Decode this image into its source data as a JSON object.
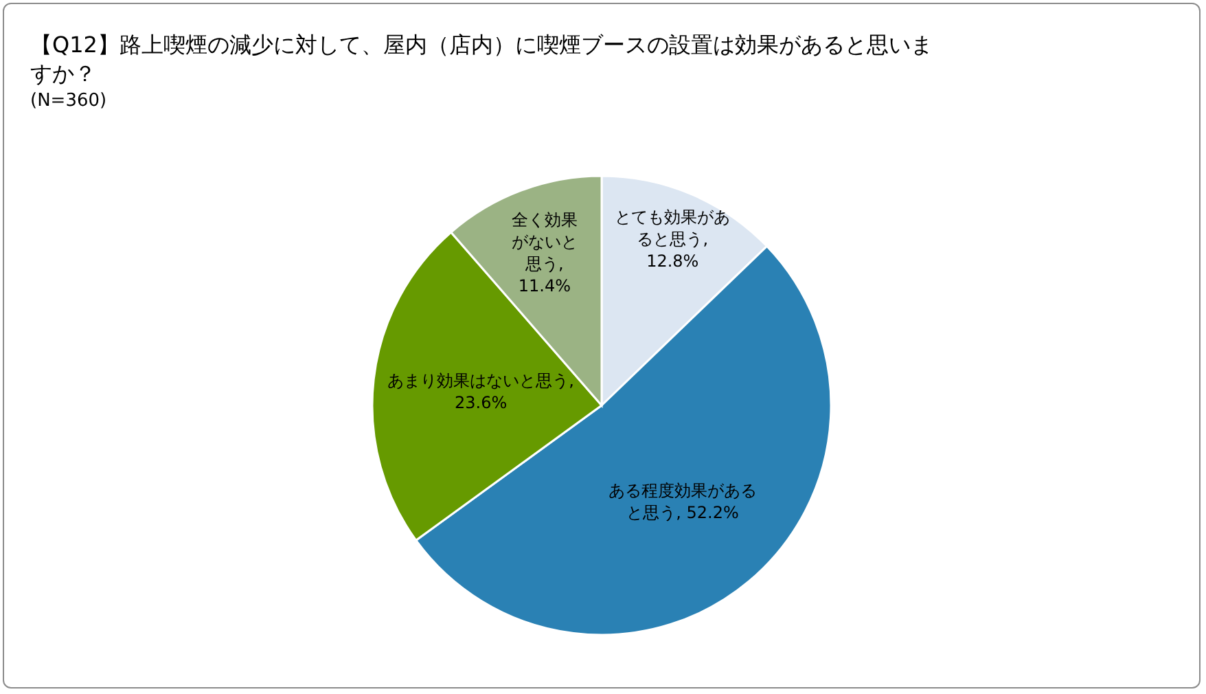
{
  "chart_data": {
    "type": "pie",
    "title": "【Q12】路上喫煙の減少に対して、屋内（店内）に喫煙ブースの設置は効果があると思いますか？",
    "subtitle": "(N=360)",
    "categories": [
      "とても効果があると思う",
      "ある程度効果があると思う",
      "あまり効果はないと思う",
      "全く効果がないと思う"
    ],
    "values": [
      12.8,
      52.2,
      23.6,
      11.4
    ],
    "value_labels": [
      ", 12.8%",
      ", 52.2%",
      ", 23.6%",
      ", 11.4%"
    ],
    "colors": [
      "#dce6f2",
      "#2a81b4",
      "#669a00",
      "#9bb384"
    ]
  }
}
